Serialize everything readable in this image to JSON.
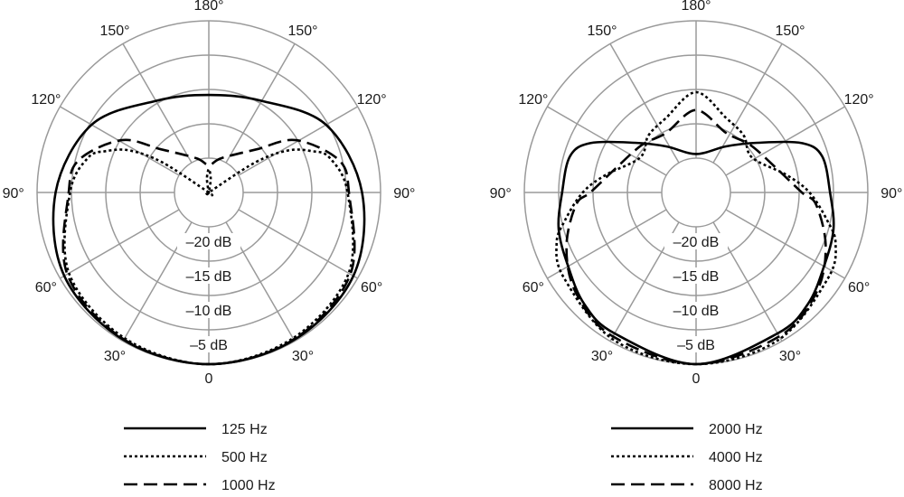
{
  "chart_data": [
    {
      "type": "polar",
      "angle_unit": "degrees",
      "angle_zero": "bottom",
      "angle_tick_labels": [
        "0",
        "30°",
        "60°",
        "90°",
        "120°",
        "150°",
        "180°"
      ],
      "radial_axis": {
        "unit": "dB",
        "range": [
          -25,
          0
        ],
        "tick_labels": [
          "–20 dB",
          "–15 dB",
          "–10 dB",
          "–5 dB"
        ],
        "ticks": [
          -20,
          -15,
          -10,
          -5,
          0
        ]
      },
      "grid": true,
      "symmetric": true,
      "legend_position": "bottom",
      "series": [
        {
          "name": "125 Hz",
          "style": "solid",
          "points": [
            [
              0,
              0
            ],
            [
              30,
              -0.2
            ],
            [
              60,
              -0.7
            ],
            [
              90,
              -2.7
            ],
            [
              120,
              -5.3
            ],
            [
              150,
              -9.6
            ],
            [
              180,
              -10.8
            ]
          ]
        },
        {
          "name": "500 Hz",
          "style": "dotted",
          "points": [
            [
              0,
              0
            ],
            [
              30,
              -0.5
            ],
            [
              60,
              -1.5
            ],
            [
              90,
              -4.8
            ],
            [
              106,
              -6.7
            ],
            [
              112,
              -8.9
            ],
            [
              118,
              -12
            ],
            [
              123,
              -17
            ],
            [
              128,
              -25
            ],
            [
              165,
              -25
            ],
            [
              172,
              -23
            ],
            [
              180,
              -21.6
            ]
          ]
        },
        {
          "name": "1000 Hz",
          "style": "dashed",
          "points": [
            [
              0,
              0
            ],
            [
              30,
              -0.3
            ],
            [
              60,
              -1.2
            ],
            [
              90,
              -4.6
            ],
            [
              104,
              -5.5
            ],
            [
              121,
              -10.2
            ],
            [
              132,
              -15.6
            ],
            [
              160,
              -19.7
            ],
            [
              180,
              -21
            ]
          ]
        }
      ]
    },
    {
      "type": "polar",
      "angle_unit": "degrees",
      "angle_zero": "bottom",
      "angle_tick_labels": [
        "0",
        "30°",
        "60°",
        "90°",
        "120°",
        "150°",
        "180°"
      ],
      "radial_axis": {
        "unit": "dB",
        "range": [
          -25,
          0
        ],
        "tick_labels": [
          "–20 dB",
          "–15 dB",
          "–10 dB",
          "–5 dB"
        ],
        "ticks": [
          -20,
          -15,
          -10,
          -5,
          0
        ]
      },
      "grid": true,
      "symmetric": true,
      "legend_position": "bottom",
      "series": [
        {
          "name": "2000 Hz",
          "style": "solid",
          "points": [
            [
              0,
              0
            ],
            [
              30,
              -1.3
            ],
            [
              45,
              -2
            ],
            [
              60,
              -3.5
            ],
            [
              75,
              -4.3
            ],
            [
              90,
              -5.5
            ],
            [
              106,
              -5.9
            ],
            [
              115,
              -8
            ],
            [
              129,
              -13.5
            ],
            [
              147,
              -17
            ],
            [
              180,
              -19.4
            ]
          ]
        },
        {
          "name": "4000 Hz",
          "style": "dotted",
          "points": [
            [
              0,
              0
            ],
            [
              29,
              -0.4
            ],
            [
              57,
              -2.1
            ],
            [
              70,
              -3.4
            ],
            [
              78,
              -5.5
            ],
            [
              90,
              -8.5
            ],
            [
              101,
              -11.6
            ],
            [
              122,
              -15.4
            ],
            [
              140,
              -14.2
            ],
            [
              158,
              -13.3
            ],
            [
              180,
              -10.4
            ]
          ]
        },
        {
          "name": "8000 Hz",
          "style": "dashed",
          "points": [
            [
              0,
              0
            ],
            [
              30,
              -0.8
            ],
            [
              50,
              -2.2
            ],
            [
              67,
              -4.5
            ],
            [
              84,
              -7.4
            ],
            [
              90,
              -9.6
            ],
            [
              106,
              -12.7
            ],
            [
              131,
              -14.5
            ],
            [
              153,
              -15.3
            ],
            [
              180,
              -13
            ]
          ]
        }
      ]
    }
  ]
}
